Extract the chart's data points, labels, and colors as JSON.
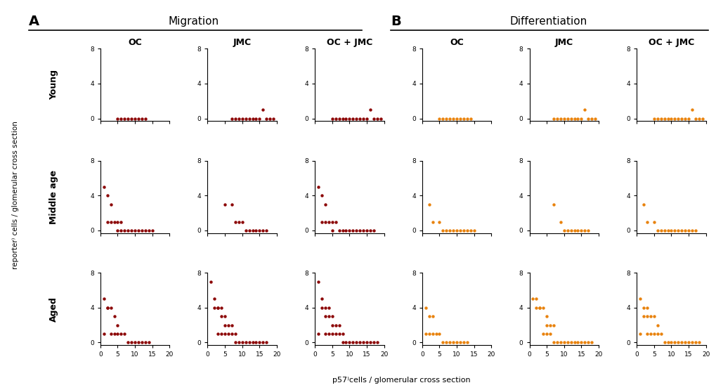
{
  "migration_color": "#8B0000",
  "differentiation_color": "#E8820C",
  "dot_size": 10,
  "panel_A_label": "A",
  "panel_B_label": "B",
  "panel_A_title": "Migration",
  "panel_B_title": "Differentiation",
  "col_labels": [
    "OC",
    "JMC",
    "OC + JMC"
  ],
  "row_labels": [
    "Young",
    "Middle age",
    "Aged"
  ],
  "xlabel": "p57⁾cells / glomerular cross section",
  "ylabel": "reporter⁾ cells / glomerular cross section",
  "xlim": [
    0,
    20
  ],
  "ylim": [
    -0.3,
    8
  ],
  "xticks": [
    0,
    5,
    10,
    15,
    20
  ],
  "yticks": [
    0,
    4,
    8
  ],
  "migration_data": {
    "young_OC": {
      "x": [
        5,
        6,
        7,
        8,
        9,
        10,
        11,
        12,
        13
      ],
      "y": [
        0,
        0,
        0,
        0,
        0,
        0,
        0,
        0,
        0
      ]
    },
    "young_JMC": {
      "x": [
        7,
        8,
        9,
        10,
        11,
        12,
        13,
        14,
        15,
        16,
        17,
        18,
        19
      ],
      "y": [
        0,
        0,
        0,
        0,
        0,
        0,
        0,
        0,
        0,
        1,
        0,
        0,
        0
      ]
    },
    "young_OC_JMC": {
      "x": [
        5,
        6,
        7,
        8,
        9,
        10,
        11,
        12,
        13,
        14,
        15,
        16,
        17,
        18,
        19
      ],
      "y": [
        0,
        0,
        0,
        0,
        0,
        0,
        0,
        0,
        0,
        0,
        0,
        1,
        0,
        0,
        0
      ]
    },
    "middle_OC": {
      "x": [
        1,
        2,
        2,
        3,
        3,
        4,
        5,
        5,
        6,
        6,
        7,
        8,
        9,
        10,
        11,
        12,
        13,
        14,
        15
      ],
      "y": [
        5,
        4,
        1,
        3,
        1,
        1,
        1,
        0,
        1,
        0,
        0,
        0,
        0,
        0,
        0,
        0,
        0,
        0,
        0
      ]
    },
    "middle_JMC": {
      "x": [
        5,
        7,
        8,
        9,
        10,
        11,
        12,
        13,
        14,
        15,
        16,
        17
      ],
      "y": [
        3,
        3,
        1,
        1,
        1,
        0,
        0,
        0,
        0,
        0,
        0,
        0
      ]
    },
    "middle_OC_JMC": {
      "x": [
        1,
        2,
        2,
        3,
        3,
        4,
        5,
        5,
        6,
        7,
        8,
        9,
        10,
        11,
        12,
        13,
        14,
        15,
        16,
        17
      ],
      "y": [
        5,
        4,
        1,
        3,
        1,
        1,
        1,
        0,
        1,
        0,
        0,
        0,
        0,
        0,
        0,
        0,
        0,
        0,
        0,
        0
      ]
    },
    "aged_OC": {
      "x": [
        1,
        1,
        2,
        2,
        3,
        3,
        4,
        4,
        5,
        5,
        6,
        7,
        8,
        9,
        10,
        11,
        12,
        13,
        14
      ],
      "y": [
        5,
        1,
        4,
        4,
        4,
        1,
        3,
        1,
        2,
        1,
        1,
        1,
        0,
        0,
        0,
        0,
        0,
        0,
        0
      ]
    },
    "aged_JMC": {
      "x": [
        1,
        2,
        2,
        3,
        3,
        3,
        4,
        4,
        4,
        5,
        5,
        5,
        6,
        6,
        7,
        7,
        8,
        8,
        9,
        10,
        11,
        12,
        13,
        14,
        15,
        16,
        17
      ],
      "y": [
        7,
        5,
        4,
        4,
        4,
        1,
        4,
        3,
        1,
        3,
        2,
        1,
        2,
        1,
        2,
        1,
        1,
        0,
        0,
        0,
        0,
        0,
        0,
        0,
        0,
        0,
        0
      ]
    },
    "aged_OC_JMC": {
      "x": [
        1,
        1,
        2,
        2,
        3,
        3,
        3,
        4,
        4,
        4,
        5,
        5,
        5,
        6,
        6,
        7,
        7,
        8,
        8,
        9,
        10,
        11,
        12,
        13,
        14,
        15,
        16,
        17,
        18
      ],
      "y": [
        7,
        1,
        5,
        4,
        4,
        3,
        1,
        4,
        3,
        1,
        3,
        2,
        1,
        2,
        1,
        2,
        1,
        1,
        0,
        0,
        0,
        0,
        0,
        0,
        0,
        0,
        0,
        0,
        0
      ]
    }
  },
  "differentiation_data": {
    "young_OC": {
      "x": [
        5,
        6,
        7,
        8,
        9,
        10,
        11,
        12,
        13,
        14
      ],
      "y": [
        0,
        0,
        0,
        0,
        0,
        0,
        0,
        0,
        0,
        0
      ]
    },
    "young_JMC": {
      "x": [
        7,
        8,
        9,
        10,
        11,
        12,
        13,
        14,
        15,
        16,
        17,
        18,
        19
      ],
      "y": [
        0,
        0,
        0,
        0,
        0,
        0,
        0,
        0,
        0,
        1,
        0,
        0,
        0
      ]
    },
    "young_OC_JMC": {
      "x": [
        5,
        6,
        7,
        8,
        9,
        10,
        11,
        12,
        13,
        14,
        15,
        16,
        17,
        18,
        19
      ],
      "y": [
        0,
        0,
        0,
        0,
        0,
        0,
        0,
        0,
        0,
        0,
        0,
        1,
        0,
        0,
        0
      ]
    },
    "middle_OC": {
      "x": [
        2,
        3,
        5,
        6,
        7,
        8,
        9,
        10,
        11,
        12,
        13,
        14,
        15
      ],
      "y": [
        3,
        1,
        1,
        0,
        0,
        0,
        0,
        0,
        0,
        0,
        0,
        0,
        0
      ]
    },
    "middle_JMC": {
      "x": [
        7,
        9,
        10,
        11,
        12,
        13,
        14,
        15,
        16,
        17
      ],
      "y": [
        3,
        1,
        0,
        0,
        0,
        0,
        0,
        0,
        0,
        0
      ]
    },
    "middle_OC_JMC": {
      "x": [
        2,
        3,
        5,
        6,
        7,
        8,
        9,
        10,
        11,
        12,
        13,
        14,
        15,
        16,
        17
      ],
      "y": [
        3,
        1,
        1,
        0,
        0,
        0,
        0,
        0,
        0,
        0,
        0,
        0,
        0,
        0,
        0
      ]
    },
    "aged_OC": {
      "x": [
        1,
        1,
        2,
        2,
        3,
        3,
        4,
        5,
        6,
        7,
        8,
        9,
        10,
        11,
        12,
        13
      ],
      "y": [
        4,
        1,
        3,
        1,
        3,
        1,
        1,
        1,
        0,
        0,
        0,
        0,
        0,
        0,
        0,
        0
      ]
    },
    "aged_JMC": {
      "x": [
        1,
        2,
        2,
        3,
        3,
        4,
        4,
        5,
        5,
        5,
        6,
        6,
        7,
        7,
        8,
        9,
        10,
        11,
        12,
        13,
        14,
        15,
        16,
        17,
        18
      ],
      "y": [
        5,
        5,
        4,
        4,
        4,
        4,
        1,
        3,
        2,
        1,
        2,
        1,
        2,
        0,
        0,
        0,
        0,
        0,
        0,
        0,
        0,
        0,
        0,
        0,
        0
      ]
    },
    "aged_OC_JMC": {
      "x": [
        1,
        1,
        2,
        2,
        3,
        3,
        3,
        4,
        4,
        5,
        5,
        6,
        6,
        7,
        8,
        9,
        10,
        11,
        12,
        13,
        14,
        15,
        16,
        17,
        18
      ],
      "y": [
        5,
        1,
        4,
        3,
        4,
        3,
        1,
        3,
        1,
        3,
        1,
        2,
        1,
        1,
        0,
        0,
        0,
        0,
        0,
        0,
        0,
        0,
        0,
        0,
        0
      ]
    }
  }
}
